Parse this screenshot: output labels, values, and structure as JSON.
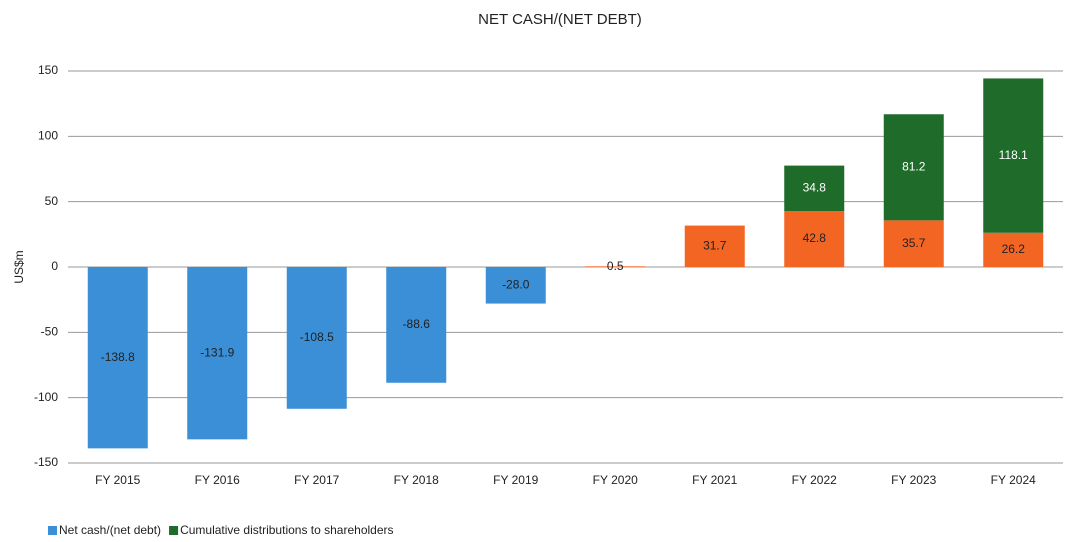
{
  "chart_data": {
    "type": "stacked_bar",
    "title": "NET CASH/(NET DEBT)",
    "y_label": "US$m",
    "categories": [
      "FY 2015",
      "FY 2016",
      "FY 2017",
      "FY 2018",
      "FY 2019",
      "FY 2020",
      "FY 2021",
      "FY 2022",
      "FY 2023",
      "FY 2024"
    ],
    "series": [
      {
        "name": "Net cash/(net debt)",
        "color": "#3a8fd6",
        "positive_color": "#f26522",
        "values": [
          -138.8,
          -131.9,
          -108.5,
          -88.6,
          -28.0,
          0.5,
          31.7,
          42.8,
          35.7,
          26.2
        ],
        "value_labels": [
          "-138.8",
          "-131.9",
          "-108.5",
          "-88.6",
          "-28.0",
          "0.5",
          "31.7",
          "42.8",
          "35.7",
          "26.2"
        ]
      },
      {
        "name": "Cumulative distributions to shareholders",
        "color": "#1e6b2a",
        "values": [
          null,
          null,
          null,
          null,
          null,
          null,
          null,
          34.8,
          81.2,
          118.1
        ],
        "value_labels": [
          null,
          null,
          null,
          null,
          null,
          null,
          null,
          "34.8",
          "81.2",
          "118.1"
        ]
      }
    ],
    "ylim": [
      -150,
      150
    ],
    "yticks": [
      -150,
      -100,
      -50,
      0,
      50,
      100,
      150
    ],
    "grid": true,
    "legend": "bottom-left"
  }
}
